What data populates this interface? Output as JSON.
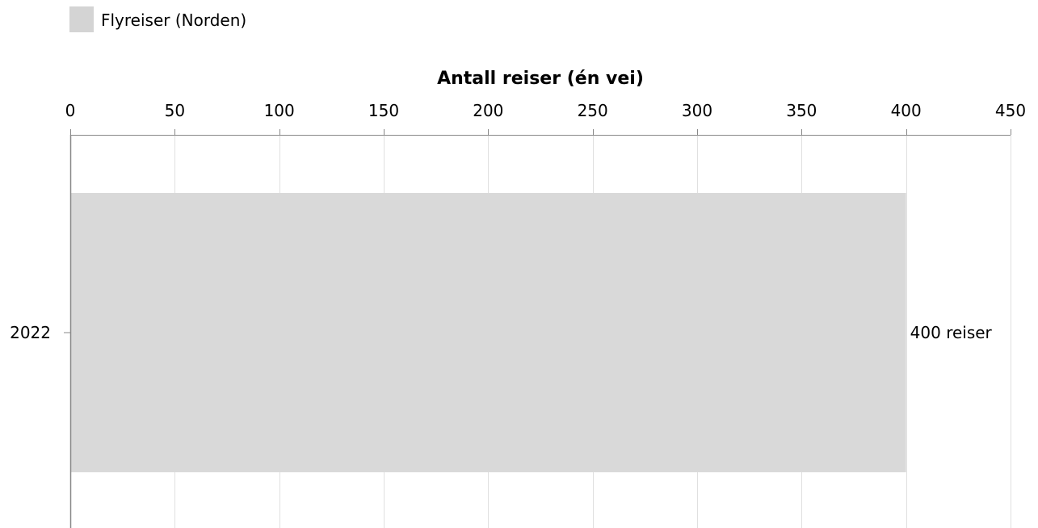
{
  "colors": {
    "bar": "#d9d9d9",
    "legend_swatch": "#d4d4d4",
    "grid": "#e0e0e0",
    "axis": "#888888"
  },
  "legend": {
    "label": "Flyreiser (Norden)"
  },
  "chart_data": {
    "type": "bar",
    "orientation": "horizontal",
    "categories": [
      "2022"
    ],
    "series": [
      {
        "name": "Flyreiser (Norden)",
        "values": [
          400
        ]
      }
    ],
    "data_labels": [
      "400 reiser"
    ],
    "xlabel": "Antall reiser (én vei)",
    "ylabel": "",
    "xlim": [
      0,
      450
    ],
    "x_ticks": [
      0,
      50,
      100,
      150,
      200,
      250,
      300,
      350,
      400,
      450
    ],
    "x_tick_labels": [
      "0",
      "50",
      "100",
      "150",
      "200",
      "250",
      "300",
      "350",
      "400",
      "450"
    ],
    "x_axis_position": "top",
    "grid": true,
    "legend_position": "top-left"
  }
}
